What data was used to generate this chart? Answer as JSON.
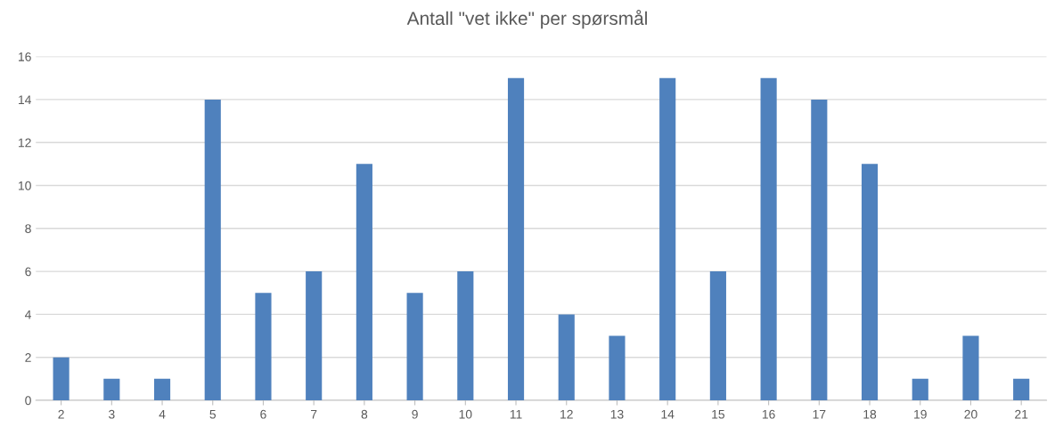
{
  "chart_data": {
    "type": "bar",
    "title": "Antall \"vet ikke\" per spørsmål",
    "categories": [
      "2",
      "3",
      "4",
      "5",
      "6",
      "7",
      "8",
      "9",
      "10",
      "11",
      "12",
      "13",
      "14",
      "15",
      "16",
      "17",
      "18",
      "19",
      "20",
      "21"
    ],
    "values": [
      2,
      1,
      1,
      14,
      5,
      6,
      11,
      5,
      6,
      15,
      4,
      3,
      15,
      6,
      15,
      14,
      11,
      1,
      3,
      1
    ],
    "color": "#4f81bd",
    "ylim": [
      0,
      16
    ],
    "yticks": [
      0,
      2,
      4,
      6,
      8,
      10,
      12,
      14,
      16
    ],
    "grid": "y",
    "legend": false
  }
}
